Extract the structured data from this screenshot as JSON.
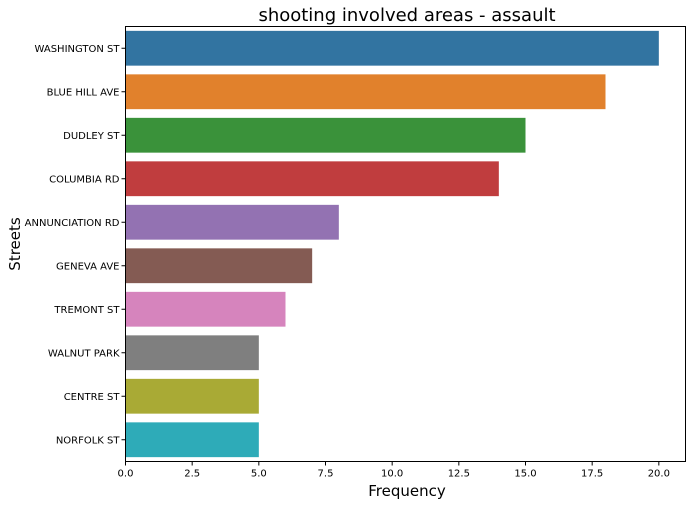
{
  "chart_data": {
    "type": "bar",
    "orientation": "horizontal",
    "title": "shooting involved areas - assault",
    "xlabel": "Frequency",
    "ylabel": "Streets",
    "categories": [
      "WASHINGTON ST",
      "BLUE HILL AVE",
      "DUDLEY ST",
      "COLUMBIA RD",
      "ANNUNCIATION RD",
      "GENEVA AVE",
      "TREMONT ST",
      "WALNUT PARK",
      "CENTRE ST",
      "NORFOLK ST"
    ],
    "values": [
      20,
      18,
      15,
      14,
      8,
      7,
      6,
      5,
      5,
      5
    ],
    "colors": [
      "#3274a1",
      "#e1812c",
      "#3a923a",
      "#c03d3e",
      "#9372b2",
      "#845b53",
      "#d684bd",
      "#7f7f7f",
      "#a9aa35",
      "#2eabb8"
    ],
    "xlim": [
      0,
      21
    ],
    "xticks": [
      "0.0",
      "2.5",
      "5.0",
      "7.5",
      "10.0",
      "12.5",
      "15.0",
      "17.5",
      "20.0"
    ],
    "grid": false,
    "legend": "none"
  }
}
